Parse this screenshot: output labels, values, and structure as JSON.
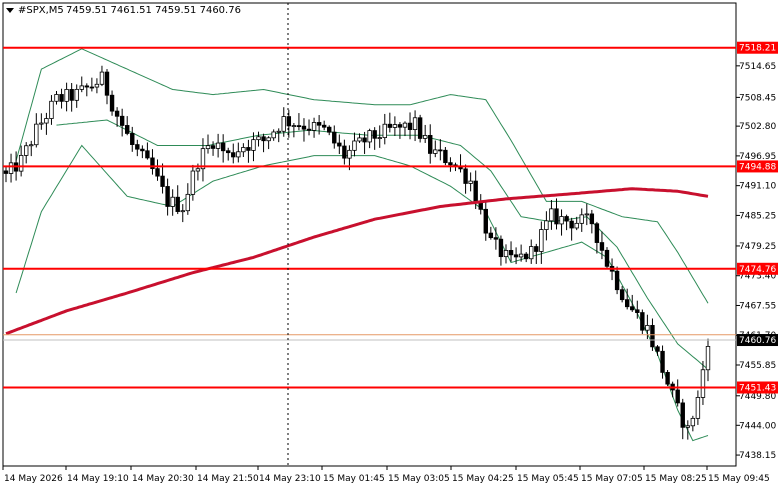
{
  "header": {
    "symbol": "#SPX,M5",
    "ohlc": "7459.51 7461.51 7459.51 7460.76"
  },
  "colors": {
    "background": "#ffffff",
    "candle": "#000000",
    "level_line": "#ff0000",
    "ma_slow": "#c8102e",
    "bands": "#2e8b57",
    "current_price": "#000000",
    "ask_line": "#e69966"
  },
  "chart_data": {
    "type": "candlestick",
    "timeframe": "M5",
    "ylim": [
      7436.0,
      7527.0
    ],
    "x_ticks": [
      "14 May 2026",
      "14 May 19:10",
      "14 May 20:30",
      "14 May 21:50",
      "14 May 23:10",
      "15 May 01:45",
      "15 May 03:05",
      "15 May 04:25",
      "15 May 05:45",
      "15 May 07:05",
      "15 May 08:25",
      "15 May 09:45"
    ],
    "y_ticks": [
      "7514.65",
      "7508.45",
      "7502.80",
      "7496.95",
      "7491.10",
      "7485.25",
      "7479.25",
      "7473.40",
      "7467.55",
      "7461.70",
      "7455.85",
      "7449.80",
      "7444.00",
      "7438.15"
    ],
    "levels": [
      {
        "label": "7518.21",
        "value": 7518.21
      },
      {
        "label": "7494.88",
        "value": 7494.88
      },
      {
        "label": "7474.76",
        "value": 7474.76
      },
      {
        "label": "7451.43",
        "value": 7451.43
      }
    ],
    "ask_value": 7461.8,
    "current_price": {
      "label": "7460.76",
      "value": 7460.76
    },
    "candle_count": 140,
    "close_path": [
      [
        0,
        7493
      ],
      [
        3,
        7496
      ],
      [
        6,
        7502
      ],
      [
        10,
        7508
      ],
      [
        14,
        7509
      ],
      [
        19,
        7512
      ],
      [
        22,
        7505
      ],
      [
        25,
        7499
      ],
      [
        29,
        7494
      ],
      [
        32,
        7488
      ],
      [
        35,
        7487
      ],
      [
        38,
        7496
      ],
      [
        41,
        7500
      ],
      [
        44,
        7497
      ],
      [
        47,
        7499
      ],
      [
        51,
        7500
      ],
      [
        55,
        7504
      ],
      [
        59,
        7503
      ],
      [
        63,
        7502
      ],
      [
        67,
        7497
      ],
      [
        71,
        7500
      ],
      [
        76,
        7502
      ],
      [
        81,
        7503
      ],
      [
        84,
        7498
      ],
      [
        88,
        7496
      ],
      [
        92,
        7492
      ],
      [
        96,
        7480
      ],
      [
        100,
        7476
      ],
      [
        104,
        7478
      ],
      [
        108,
        7485
      ],
      [
        112,
        7484
      ],
      [
        116,
        7484
      ],
      [
        119,
        7476
      ],
      [
        123,
        7468
      ],
      [
        127,
        7463
      ],
      [
        130,
        7455
      ],
      [
        133,
        7447
      ],
      [
        135,
        7443
      ],
      [
        137,
        7449
      ],
      [
        139,
        7461
      ]
    ],
    "ma_slow_path": [
      [
        0,
        7462
      ],
      [
        12,
        7466.5
      ],
      [
        24,
        7470
      ],
      [
        37,
        7474
      ],
      [
        49,
        7477
      ],
      [
        61,
        7481
      ],
      [
        73,
        7484.5
      ],
      [
        86,
        7487
      ],
      [
        99,
        7488.5
      ],
      [
        112,
        7489.5
      ],
      [
        124,
        7490.5
      ],
      [
        133,
        7490
      ],
      [
        139,
        7489
      ]
    ],
    "band_upper_path": [
      [
        2,
        7496
      ],
      [
        7,
        7514
      ],
      [
        15,
        7518
      ],
      [
        24,
        7514
      ],
      [
        33,
        7510
      ],
      [
        41,
        7509
      ],
      [
        51,
        7510
      ],
      [
        61,
        7508
      ],
      [
        73,
        7507
      ],
      [
        80,
        7507
      ],
      [
        88,
        7509
      ],
      [
        95,
        7508
      ],
      [
        100,
        7500
      ],
      [
        107,
        7488
      ],
      [
        114,
        7488
      ],
      [
        122,
        7485
      ],
      [
        129,
        7484
      ],
      [
        133,
        7478
      ],
      [
        139,
        7468
      ]
    ],
    "band_lower_path": [
      [
        2,
        7470
      ],
      [
        7,
        7486
      ],
      [
        15,
        7499
      ],
      [
        24,
        7489
      ],
      [
        33,
        7487
      ],
      [
        41,
        7492
      ],
      [
        51,
        7495
      ],
      [
        61,
        7497
      ],
      [
        73,
        7497
      ],
      [
        80,
        7495
      ],
      [
        88,
        7491
      ],
      [
        95,
        7486
      ],
      [
        100,
        7476
      ],
      [
        107,
        7478
      ],
      [
        114,
        7480
      ],
      [
        119,
        7477
      ],
      [
        124,
        7468
      ],
      [
        129,
        7458
      ],
      [
        133,
        7447
      ],
      [
        136,
        7441
      ],
      [
        139,
        7442
      ]
    ],
    "band_mid_path": [
      [
        10,
        7503
      ],
      [
        20,
        7504
      ],
      [
        30,
        7499
      ],
      [
        40,
        7499
      ],
      [
        50,
        7501
      ],
      [
        60,
        7502
      ],
      [
        72,
        7501
      ],
      [
        82,
        7501
      ],
      [
        90,
        7499
      ],
      [
        96,
        7494
      ],
      [
        102,
        7485
      ],
      [
        108,
        7484
      ],
      [
        115,
        7485
      ],
      [
        121,
        7479
      ],
      [
        127,
        7469
      ],
      [
        133,
        7460
      ],
      [
        139,
        7455
      ]
    ]
  }
}
